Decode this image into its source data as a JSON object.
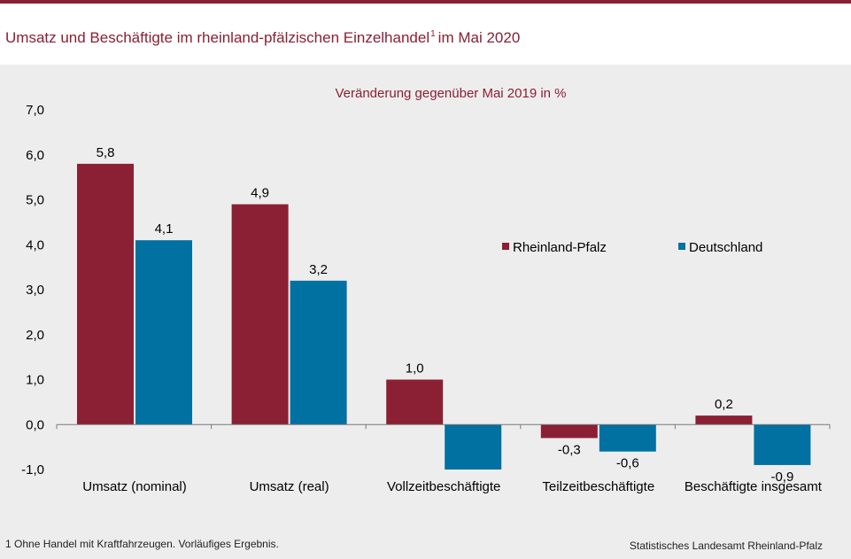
{
  "header": {
    "title_main": "Umsatz und Beschäftigte im rheinland-pfälzischen Einzelhandel",
    "title_sup": "1",
    "title_end": "im Mai 2020"
  },
  "footnote": "1 Ohne Handel mit Kraftfahrzeugen. Vorläufiges Ergebnis.",
  "source": "Statistisches Landesamt Rheinland-Pfalz",
  "colors": {
    "accent": "#8b1f33",
    "rlp": "#8b1f33",
    "de": "#0071a1"
  },
  "chart_data": {
    "type": "bar",
    "subtitle": "Veränderung gegenüber Mai 2019 in %",
    "categories": [
      "Umsatz (nominal)",
      "Umsatz (real)",
      "Vollzeitbeschäftigte",
      "Teilzeitbeschäftigte",
      "Beschäftigte insgesamt"
    ],
    "series": [
      {
        "name": "Rheinland-Pfalz",
        "color": "#8b1f33",
        "values": [
          5.8,
          4.9,
          1.0,
          -0.3,
          0.2
        ],
        "labels": [
          "5,8",
          "4,9",
          "1,0",
          "-0,3",
          "0,2"
        ]
      },
      {
        "name": "Deutschland",
        "color": "#0071a1",
        "values": [
          4.1,
          3.2,
          -1.0,
          -0.6,
          -0.9
        ],
        "labels": [
          "4,1",
          "3,2",
          "",
          "-0,6",
          "-0,9"
        ]
      }
    ],
    "ylim": [
      -1.0,
      7.0
    ],
    "yticks": [
      "-1,0",
      "0,0",
      "1,0",
      "2,0",
      "3,0",
      "4,0",
      "5,0",
      "6,0",
      "7,0"
    ],
    "grid": false,
    "legend": "right, inside plot"
  }
}
